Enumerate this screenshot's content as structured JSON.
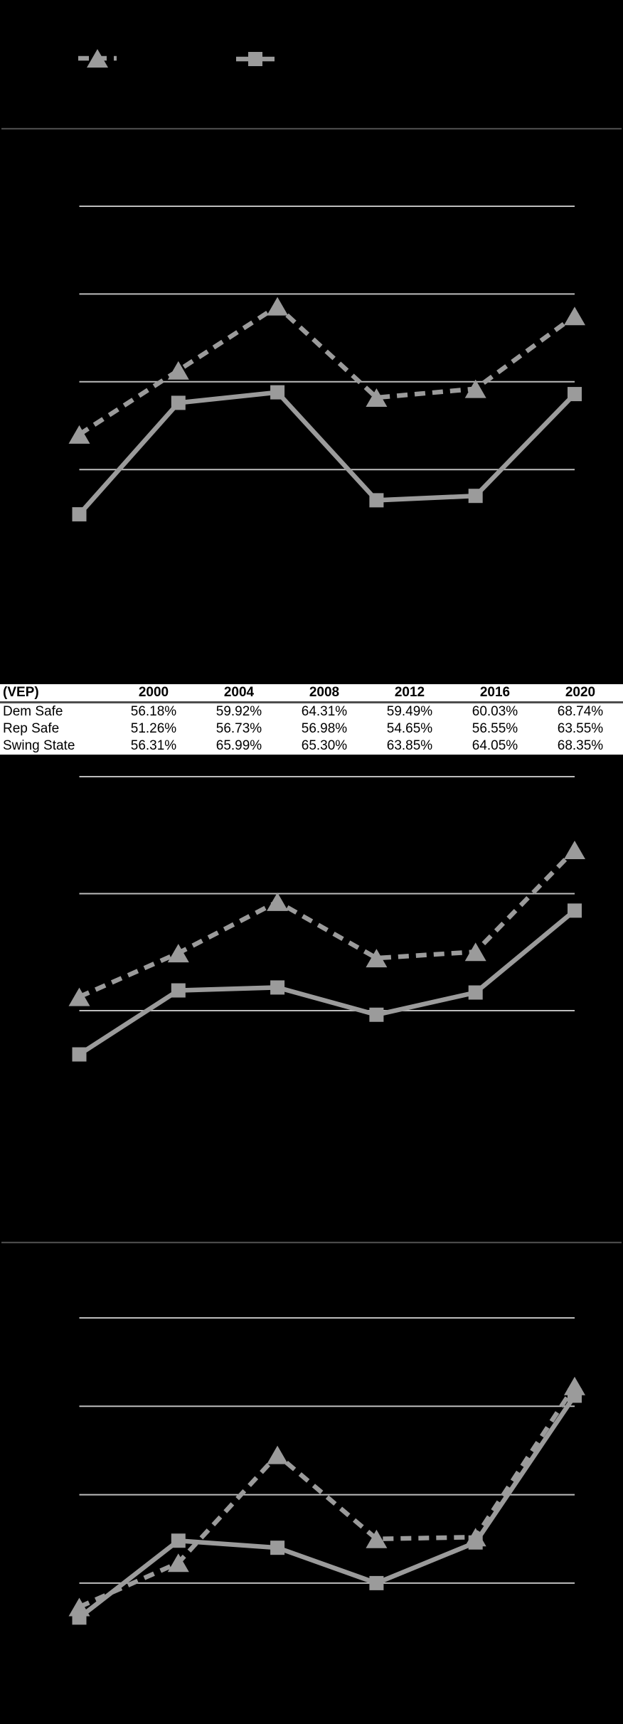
{
  "colors": {
    "background": "#000000",
    "series_gray": "#9B9B9B",
    "gridline_gray": "#BDBDBD",
    "divider_gray": "#4A4A4A",
    "table_background": "#FFFFFF",
    "table_text": "#000000",
    "table_header_rule": "#4D4D4D"
  },
  "legend": {
    "entries": [
      {
        "marker": "triangle",
        "line": "dashed",
        "label": ""
      },
      {
        "marker": "square",
        "line": "solid",
        "label": ""
      }
    ]
  },
  "table": {
    "columns": [
      "(VEP)",
      "2000",
      "2004",
      "2008",
      "2012",
      "2016",
      "2020"
    ],
    "rows": [
      {
        "label": "Dem Safe",
        "values": [
          "56.18%",
          "59.92%",
          "64.31%",
          "59.49%",
          "60.03%",
          "68.74%"
        ]
      },
      {
        "label": "Rep Safe",
        "values": [
          "51.26%",
          "56.73%",
          "56.98%",
          "54.65%",
          "56.55%",
          "63.55%"
        ]
      },
      {
        "label": "Swing State",
        "values": [
          "56.31%",
          "65.99%",
          "65.30%",
          "63.85%",
          "64.05%",
          "68.35%"
        ]
      }
    ]
  },
  "chart_data": [
    {
      "id": "chart-1",
      "type": "line",
      "x": [
        2000,
        2004,
        2008,
        2012,
        2016,
        2020
      ],
      "gridline_values": [
        80,
        70,
        60,
        50
      ],
      "ylim": [
        44,
        85
      ],
      "estimated": true,
      "series": [
        {
          "name": "triangle-dashed",
          "marker": "triangle",
          "line": "dashed",
          "values": [
            54.0,
            61.3,
            68.6,
            58.2,
            59.2,
            67.5
          ]
        },
        {
          "name": "square-solid",
          "marker": "square",
          "line": "solid",
          "values": [
            44.9,
            57.6,
            58.8,
            46.5,
            47.0,
            58.6
          ]
        }
      ]
    },
    {
      "id": "chart-2",
      "type": "line",
      "x": [
        2000,
        2004,
        2008,
        2012,
        2016,
        2020
      ],
      "gridline_values": [
        75,
        65,
        55
      ],
      "ylim": [
        48,
        76
      ],
      "estimated": false,
      "series": [
        {
          "name": "triangle-dashed",
          "marker": "triangle",
          "line": "dashed",
          "values": [
            56.18,
            59.92,
            64.31,
            59.49,
            60.03,
            68.74
          ]
        },
        {
          "name": "square-solid",
          "marker": "square",
          "line": "solid",
          "values": [
            51.26,
            56.73,
            56.98,
            54.65,
            56.55,
            63.55
          ]
        }
      ]
    },
    {
      "id": "chart-3",
      "type": "line",
      "x": [
        2000,
        2004,
        2008,
        2012,
        2016,
        2020
      ],
      "gridline_values": [
        80,
        70,
        60,
        50
      ],
      "ylim": [
        44,
        83
      ],
      "estimated": true,
      "series": [
        {
          "name": "triangle-dashed",
          "marker": "triangle",
          "line": "dashed",
          "values": [
            47.3,
            52.3,
            64.5,
            55.0,
            55.2,
            72.3
          ]
        },
        {
          "name": "square-solid",
          "marker": "square",
          "line": "solid",
          "values": [
            46.1,
            54.8,
            54.0,
            50.0,
            54.6,
            71.2
          ]
        }
      ]
    }
  ]
}
